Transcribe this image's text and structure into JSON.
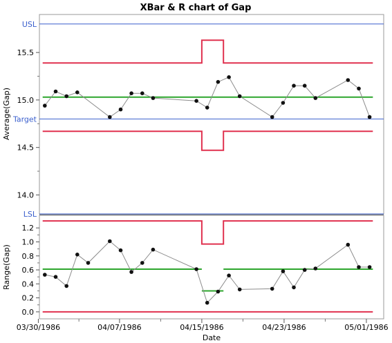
{
  "chart_data": [
    {
      "type": "line",
      "chart_kind": "xbar",
      "title": "XBar & R chart of Gap",
      "ylabel": "Average(Gap)",
      "ylim": [
        13.8,
        15.9
      ],
      "yticks": [
        14.0,
        14.5,
        15.0,
        15.5
      ],
      "ytick_labels": [
        "14.0",
        "14.5",
        "15.0",
        "15.5"
      ],
      "spec_limits": [
        {
          "label": "USL",
          "value": 15.8
        },
        {
          "label": "Target",
          "value": 14.8
        },
        {
          "label": "LSL",
          "value": 13.8
        }
      ],
      "center_line": [
        {
          "x_from": 0,
          "x_to": 31,
          "value": 15.03
        }
      ],
      "ucl": [
        {
          "x_from": 0,
          "x_to": 15,
          "value": 15.39
        },
        {
          "x_from": 15,
          "x_to": 17,
          "value": 15.63
        },
        {
          "x_from": 17,
          "x_to": 31,
          "value": 15.39
        }
      ],
      "lcl": [
        {
          "x_from": 0,
          "x_to": 15,
          "value": 14.67
        },
        {
          "x_from": 15,
          "x_to": 17,
          "value": 14.47
        },
        {
          "x_from": 17,
          "x_to": 31,
          "value": 14.67
        }
      ],
      "series": [
        {
          "x": [
            0,
            1,
            2,
            3,
            6,
            7,
            8,
            9,
            10,
            14,
            15,
            16,
            17,
            18,
            21,
            22,
            23,
            24,
            25,
            28,
            29,
            30
          ],
          "values": [
            14.94,
            15.09,
            15.04,
            15.08,
            14.82,
            14.9,
            15.07,
            15.07,
            15.02,
            14.99,
            14.92,
            15.19,
            15.24,
            15.04,
            14.82,
            14.97,
            15.15,
            15.15,
            15.02,
            15.21,
            15.12,
            14.82
          ]
        }
      ],
      "color_limit": "#e0304e",
      "color_center": "#2ca52c",
      "color_spec": "#3a5fcd",
      "color_line": "#8c8c8c"
    },
    {
      "type": "line",
      "chart_kind": "range",
      "ylabel": "Range(Gap)",
      "ylim": [
        -0.1,
        1.38
      ],
      "yticks": [
        0.0,
        0.2,
        0.4,
        0.6,
        0.8,
        1.0,
        1.2
      ],
      "ytick_labels": [
        "0.0",
        "0.2",
        "0.4",
        "0.6",
        "0.8",
        "1.0",
        "1.2"
      ],
      "center_line": [
        {
          "x_from": 0,
          "x_to": 15,
          "value": 0.61
        },
        {
          "x_from": 15,
          "x_to": 17,
          "value": 0.3
        },
        {
          "x_from": 17,
          "x_to": 31,
          "value": 0.61
        }
      ],
      "ucl": [
        {
          "x_from": 0,
          "x_to": 15,
          "value": 1.3
        },
        {
          "x_from": 15,
          "x_to": 17,
          "value": 0.97
        },
        {
          "x_from": 17,
          "x_to": 31,
          "value": 1.3
        }
      ],
      "lcl": [
        {
          "x_from": 0,
          "x_to": 31,
          "value": 0.0
        }
      ],
      "series": [
        {
          "x": [
            0,
            1,
            2,
            3,
            4,
            6,
            7,
            8,
            9,
            10,
            14,
            15,
            16,
            17,
            18,
            21,
            22,
            23,
            24,
            25,
            28,
            29,
            30
          ],
          "values": [
            0.53,
            0.5,
            0.37,
            0.82,
            0.7,
            1.01,
            0.88,
            0.57,
            0.7,
            0.89,
            0.61,
            0.13,
            0.29,
            0.52,
            0.32,
            0.33,
            0.58,
            0.35,
            0.6,
            0.62,
            0.96,
            0.64,
            0.64
          ]
        }
      ]
    }
  ],
  "x_axis": {
    "xlabel": "Date",
    "xlim": [
      -0.5,
      31.3
    ],
    "ticks": [
      {
        "x": -0.6,
        "label": "03/30/1986"
      },
      {
        "x": 6.9,
        "label": "04/07/1986"
      },
      {
        "x": 14.5,
        "label": "04/15/1986"
      },
      {
        "x": 22.1,
        "label": "04/23/1986"
      },
      {
        "x": 29.7,
        "label": "05/01/1986"
      }
    ]
  }
}
